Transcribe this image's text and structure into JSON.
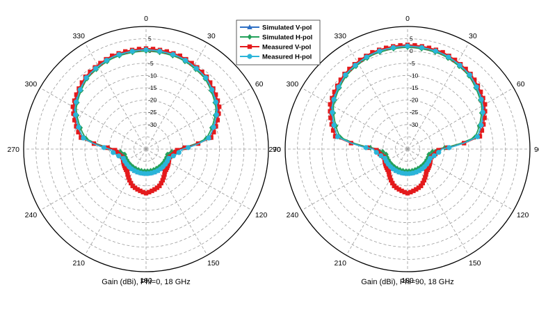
{
  "chart_data": [
    {
      "type": "polar-line",
      "title": "",
      "caption": "Gain (dBi), Phi=0, 18 GHz",
      "angle_ticks": [
        "0",
        "30",
        "60",
        "90",
        "120",
        "150",
        "180",
        "210",
        "240",
        "270",
        "300",
        "330"
      ],
      "radial_ticks": [
        "5",
        "0",
        "-5",
        "-10",
        "-15",
        "-20",
        "-25",
        "-30"
      ],
      "rlim": [
        -40,
        10
      ],
      "series": [
        {
          "name": "Simulated V-pol",
          "color": "#2e6fc4",
          "marker": "triangle",
          "gain": [
            {
              "angle": 0,
              "value": 0.5
            },
            {
              "angle": 20,
              "value": 0
            },
            {
              "angle": 40,
              "value": -2
            },
            {
              "angle": 60,
              "value": -6
            },
            {
              "angle": 80,
              "value": -14
            },
            {
              "angle": 90,
              "value": -26
            },
            {
              "angle": 100,
              "value": -30
            },
            {
              "angle": 260,
              "value": -30
            },
            {
              "angle": 270,
              "value": -26
            },
            {
              "angle": 280,
              "value": -14
            },
            {
              "angle": 300,
              "value": -6
            },
            {
              "angle": 320,
              "value": -2
            },
            {
              "angle": 340,
              "value": 0
            }
          ]
        },
        {
          "name": "Simulated H-pol",
          "color": "#23a05a",
          "marker": "diamond",
          "gain": [
            {
              "angle": 0,
              "value": 0
            },
            {
              "angle": 20,
              "value": -0.5
            },
            {
              "angle": 40,
              "value": -2.5
            },
            {
              "angle": 60,
              "value": -7
            },
            {
              "angle": 80,
              "value": -15
            },
            {
              "angle": 90,
              "value": -27
            },
            {
              "angle": 100,
              "value": -31
            },
            {
              "angle": 260,
              "value": -31
            },
            {
              "angle": 270,
              "value": -27
            },
            {
              "angle": 280,
              "value": -15
            },
            {
              "angle": 300,
              "value": -7
            },
            {
              "angle": 320,
              "value": -2.5
            },
            {
              "angle": 340,
              "value": -0.5
            }
          ]
        },
        {
          "name": "Measured V-pol",
          "color": "#e41a1c",
          "marker": "square",
          "gain": [
            {
              "angle": 0,
              "value": 1
            },
            {
              "angle": 20,
              "value": 0.5
            },
            {
              "angle": 40,
              "value": -1.5
            },
            {
              "angle": 60,
              "value": -5.5
            },
            {
              "angle": 80,
              "value": -13
            },
            {
              "angle": 90,
              "value": -27
            },
            {
              "angle": 110,
              "value": -30
            },
            {
              "angle": 140,
              "value": -28
            },
            {
              "angle": 160,
              "value": -24
            },
            {
              "angle": 180,
              "value": -22
            },
            {
              "angle": 200,
              "value": -24
            },
            {
              "angle": 220,
              "value": -28
            },
            {
              "angle": 250,
              "value": -30
            },
            {
              "angle": 270,
              "value": -27
            },
            {
              "angle": 280,
              "value": -13
            },
            {
              "angle": 300,
              "value": -5.5
            },
            {
              "angle": 320,
              "value": -1.5
            },
            {
              "angle": 340,
              "value": 0.5
            }
          ]
        },
        {
          "name": "Measured H-pol",
          "color": "#2bb5d9",
          "marker": "circle",
          "gain": [
            {
              "angle": 0,
              "value": 0.5
            },
            {
              "angle": 20,
              "value": 0
            },
            {
              "angle": 40,
              "value": -2
            },
            {
              "angle": 60,
              "value": -6.5
            },
            {
              "angle": 80,
              "value": -14
            },
            {
              "angle": 90,
              "value": -25
            },
            {
              "angle": 110,
              "value": -30
            },
            {
              "angle": 250,
              "value": -30
            },
            {
              "angle": 270,
              "value": -25
            },
            {
              "angle": 280,
              "value": -14
            },
            {
              "angle": 300,
              "value": -6.5
            },
            {
              "angle": 320,
              "value": -2
            },
            {
              "angle": 340,
              "value": 0
            }
          ]
        }
      ]
    },
    {
      "type": "polar-line",
      "title": "",
      "caption": "Gain (dBi), Phi=90, 18 GHz",
      "angle_ticks": [
        "0",
        "30",
        "60",
        "90",
        "120",
        "150",
        "180",
        "210",
        "240",
        "270",
        "300",
        "330"
      ],
      "radial_ticks": [
        "5",
        "0",
        "-5",
        "-10",
        "-15",
        "-20",
        "-25",
        "-30"
      ],
      "rlim": [
        -40,
        10
      ],
      "series": [
        {
          "name": "Simulated V-pol",
          "color": "#2e6fc4",
          "marker": "triangle",
          "gain": [
            {
              "angle": 0,
              "value": 2
            },
            {
              "angle": 20,
              "value": 1.5
            },
            {
              "angle": 40,
              "value": -0.5
            },
            {
              "angle": 60,
              "value": -4
            },
            {
              "angle": 80,
              "value": -11
            },
            {
              "angle": 90,
              "value": -27
            },
            {
              "angle": 100,
              "value": -30
            },
            {
              "angle": 260,
              "value": -30
            },
            {
              "angle": 270,
              "value": -27
            },
            {
              "angle": 280,
              "value": -11
            },
            {
              "angle": 300,
              "value": -4
            },
            {
              "angle": 320,
              "value": -0.5
            },
            {
              "angle": 340,
              "value": 1.5
            }
          ]
        },
        {
          "name": "Simulated H-pol",
          "color": "#23a05a",
          "marker": "diamond",
          "gain": [
            {
              "angle": 0,
              "value": 1.5
            },
            {
              "angle": 20,
              "value": 1
            },
            {
              "angle": 40,
              "value": -1
            },
            {
              "angle": 60,
              "value": -5
            },
            {
              "angle": 80,
              "value": -12
            },
            {
              "angle": 90,
              "value": -28
            },
            {
              "angle": 100,
              "value": -31
            },
            {
              "angle": 260,
              "value": -31
            },
            {
              "angle": 270,
              "value": -28
            },
            {
              "angle": 280,
              "value": -12
            },
            {
              "angle": 300,
              "value": -5
            },
            {
              "angle": 320,
              "value": -1
            },
            {
              "angle": 340,
              "value": 1
            }
          ]
        },
        {
          "name": "Measured V-pol",
          "color": "#e41a1c",
          "marker": "square",
          "gain": [
            {
              "angle": 0,
              "value": 2.5
            },
            {
              "angle": 20,
              "value": 2
            },
            {
              "angle": 40,
              "value": 0
            },
            {
              "angle": 60,
              "value": -3.5
            },
            {
              "angle": 80,
              "value": -10
            },
            {
              "angle": 90,
              "value": -27
            },
            {
              "angle": 110,
              "value": -30
            },
            {
              "angle": 140,
              "value": -28
            },
            {
              "angle": 160,
              "value": -24
            },
            {
              "angle": 180,
              "value": -22
            },
            {
              "angle": 200,
              "value": -24
            },
            {
              "angle": 220,
              "value": -28
            },
            {
              "angle": 250,
              "value": -30
            },
            {
              "angle": 270,
              "value": -27
            },
            {
              "angle": 280,
              "value": -10
            },
            {
              "angle": 300,
              "value": -3.5
            },
            {
              "angle": 320,
              "value": 0
            },
            {
              "angle": 340,
              "value": 2
            }
          ]
        },
        {
          "name": "Measured H-pol",
          "color": "#2bb5d9",
          "marker": "circle",
          "gain": [
            {
              "angle": 0,
              "value": 2
            },
            {
              "angle": 20,
              "value": 1.5
            },
            {
              "angle": 40,
              "value": -0.5
            },
            {
              "angle": 60,
              "value": -4.5
            },
            {
              "angle": 80,
              "value": -11
            },
            {
              "angle": 90,
              "value": -26
            },
            {
              "angle": 110,
              "value": -30
            },
            {
              "angle": 250,
              "value": -30
            },
            {
              "angle": 270,
              "value": -26
            },
            {
              "angle": 280,
              "value": -11
            },
            {
              "angle": 300,
              "value": -4.5
            },
            {
              "angle": 320,
              "value": -0.5
            },
            {
              "angle": 340,
              "value": 1.5
            }
          ]
        }
      ]
    }
  ],
  "legend": {
    "placement": "top-center",
    "entries": [
      {
        "label": "Simulated V-pol",
        "color": "#2e6fc4",
        "marker": "triangle"
      },
      {
        "label": "Simulated H-pol",
        "color": "#23a05a",
        "marker": "diamond"
      },
      {
        "label": "Measured V-pol",
        "color": "#e41a1c",
        "marker": "square"
      },
      {
        "label": "Measured H-pol",
        "color": "#2bb5d9",
        "marker": "circle"
      }
    ]
  }
}
